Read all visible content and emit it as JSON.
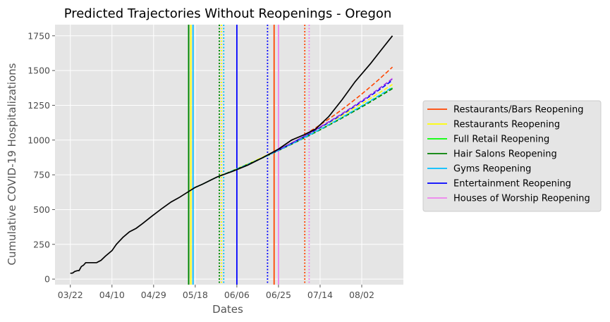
{
  "chart_data": {
    "type": "line",
    "title": "Predicted Trajectories Without Reopenings - Oregon",
    "xlabel": "Dates",
    "ylabel": "Cumulative COVID-19 Hospitalizations",
    "x_start_date": "2020-03-22",
    "xlim": [
      "2020-03-15",
      "2020-08-21"
    ],
    "ylim": [
      -40,
      1830
    ],
    "x_ticks": [
      "03/22",
      "04/10",
      "04/29",
      "05/18",
      "06/06",
      "06/25",
      "07/14",
      "08/02"
    ],
    "y_ticks": [
      0,
      250,
      500,
      750,
      1000,
      1250,
      1500,
      1750
    ],
    "grid": true,
    "legend_position": "right-outside",
    "actual": {
      "color": "#000000",
      "points": [
        [
          "2020-03-22",
          42
        ],
        [
          "2020-03-23",
          43
        ],
        [
          "2020-03-24",
          55
        ],
        [
          "2020-03-25",
          60
        ],
        [
          "2020-03-26",
          62
        ],
        [
          "2020-03-27",
          90
        ],
        [
          "2020-03-28",
          100
        ],
        [
          "2020-03-29",
          118
        ],
        [
          "2020-03-31",
          118
        ],
        [
          "2020-04-03",
          118
        ],
        [
          "2020-04-05",
          135
        ],
        [
          "2020-04-07",
          165
        ],
        [
          "2020-04-10",
          205
        ],
        [
          "2020-04-12",
          250
        ],
        [
          "2020-04-15",
          300
        ],
        [
          "2020-04-18",
          340
        ],
        [
          "2020-04-21",
          365
        ],
        [
          "2020-04-24",
          400
        ],
        [
          "2020-04-28",
          450
        ],
        [
          "2020-05-03",
          510
        ],
        [
          "2020-05-07",
          555
        ],
        [
          "2020-05-11",
          590
        ],
        [
          "2020-05-15",
          630
        ],
        [
          "2020-05-18",
          660
        ],
        [
          "2020-05-21",
          680
        ],
        [
          "2020-05-28",
          735
        ],
        [
          "2020-06-04",
          775
        ],
        [
          "2020-06-11",
          820
        ],
        [
          "2020-06-18",
          875
        ],
        [
          "2020-06-25",
          935
        ],
        [
          "2020-07-01",
          1000
        ],
        [
          "2020-07-07",
          1040
        ],
        [
          "2020-07-12",
          1080
        ],
        [
          "2020-07-18",
          1170
        ],
        [
          "2020-07-24",
          1290
        ],
        [
          "2020-07-30",
          1420
        ],
        [
          "2020-08-06",
          1550
        ],
        [
          "2020-08-11",
          1650
        ],
        [
          "2020-08-16",
          1750
        ]
      ]
    },
    "series": [
      {
        "name": "Restaurants/Bars Reopening",
        "color": "#ff4500",
        "reopen_date": "2020-06-23",
        "window_end": "2020-07-07",
        "end_value": 1525
      },
      {
        "name": "Restaurants Reopening",
        "color": "#ffff00",
        "reopen_date": "2020-05-16",
        "window_end": "2020-05-30",
        "end_value": 1400
      },
      {
        "name": "Full Retail Reopening",
        "color": "#00ff00",
        "reopen_date": "2020-05-15",
        "window_end": "2020-05-29",
        "end_value": 1375
      },
      {
        "name": "Hair Salons Reopening",
        "color": "#008000",
        "reopen_date": "2020-05-15",
        "window_end": "2020-05-29",
        "end_value": 1370
      },
      {
        "name": "Gyms Reopening",
        "color": "#00bfff",
        "reopen_date": "2020-05-17",
        "window_end": "2020-05-31",
        "end_value": 1380
      },
      {
        "name": "Entertainment Reopening",
        "color": "#0000ff",
        "reopen_date": "2020-06-06",
        "window_end": "2020-06-20",
        "end_value": 1430
      },
      {
        "name": "Houses of Worship Reopening",
        "color": "#ee82ee",
        "reopen_date": "2020-06-25",
        "window_end": "2020-07-09",
        "end_value": 1445
      }
    ],
    "extra_projections": [
      {
        "color": "#8a2be2",
        "start_date": "2020-06-21",
        "end_value": 1440
      }
    ]
  }
}
